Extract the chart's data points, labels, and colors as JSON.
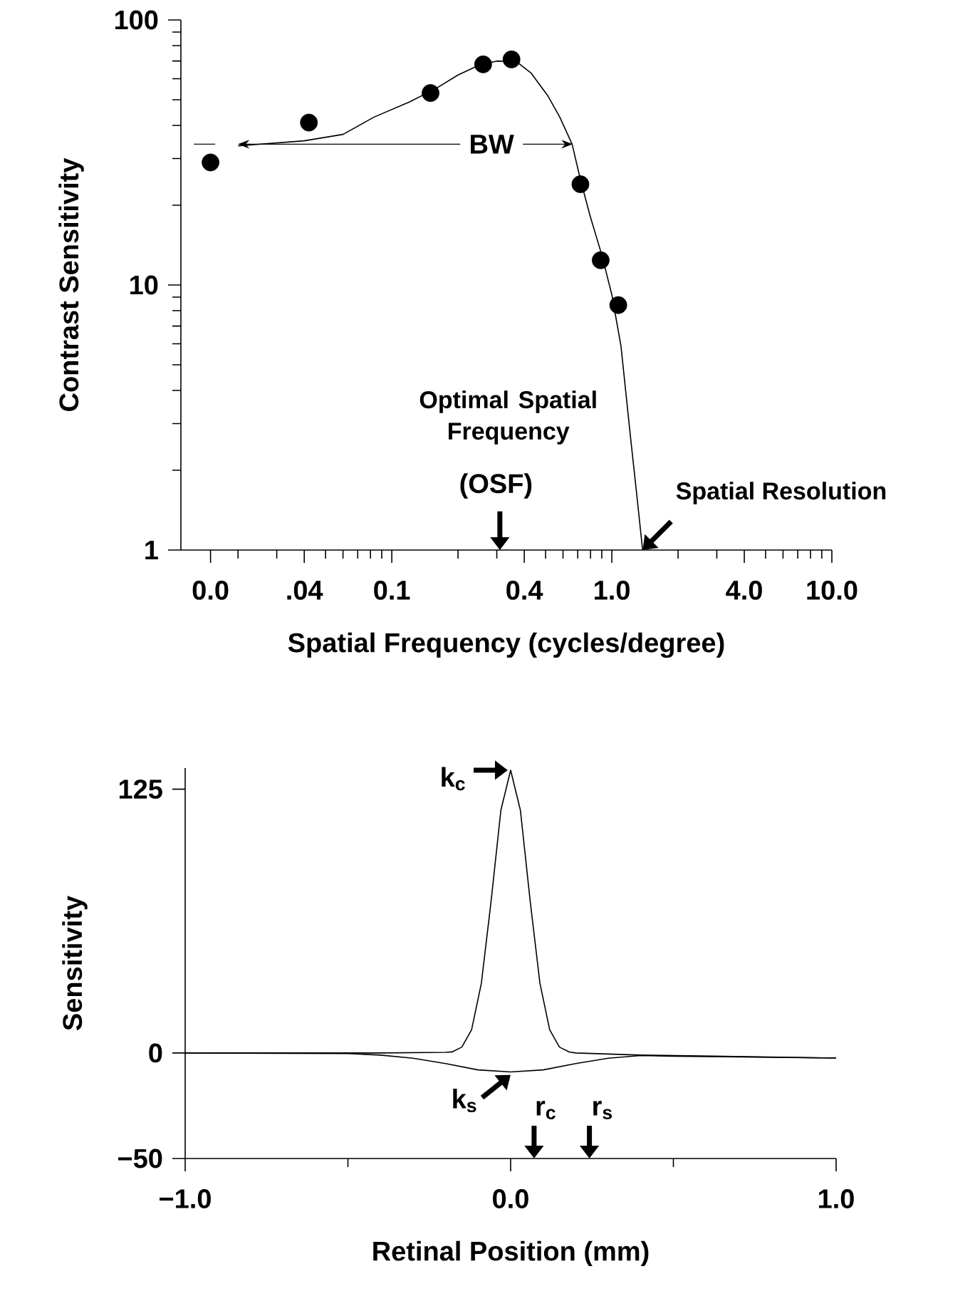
{
  "chart_data": [
    {
      "type": "scatter",
      "xlabel": "Spatial Frequency (cycles/degree)",
      "ylabel": "Contrast Sensitivity",
      "log": "xy",
      "marker": "circle",
      "xlim": [
        0.011,
        10
      ],
      "ylim": [
        1,
        100
      ],
      "xticks": [
        {
          "value": 0.015,
          "label": "0.0"
        },
        {
          "value": 0.02,
          "label": null
        },
        {
          "value": 0.03,
          "label": null
        },
        {
          "value": 0.04,
          "label": ".04"
        },
        {
          "value": 0.05,
          "label": null
        },
        {
          "value": 0.06,
          "label": null
        },
        {
          "value": 0.07,
          "label": null
        },
        {
          "value": 0.08,
          "label": null
        },
        {
          "value": 0.09,
          "label": null
        },
        {
          "value": 0.1,
          "label": "0.1"
        },
        {
          "value": 0.2,
          "label": null
        },
        {
          "value": 0.3,
          "label": null
        },
        {
          "value": 0.4,
          "label": "0.4"
        },
        {
          "value": 0.5,
          "label": null
        },
        {
          "value": 0.6,
          "label": null
        },
        {
          "value": 0.7,
          "label": null
        },
        {
          "value": 0.8,
          "label": null
        },
        {
          "value": 0.9,
          "label": null
        },
        {
          "value": 1,
          "label": "1.0"
        },
        {
          "value": 2,
          "label": null
        },
        {
          "value": 3,
          "label": null
        },
        {
          "value": 4,
          "label": "4.0"
        },
        {
          "value": 5,
          "label": null
        },
        {
          "value": 6,
          "label": null
        },
        {
          "value": 7,
          "label": null
        },
        {
          "value": 8,
          "label": null
        },
        {
          "value": 9,
          "label": null
        },
        {
          "value": 10,
          "label": "10.0"
        }
      ],
      "yticks": [
        1,
        {
          "value": 2,
          "label": null
        },
        {
          "value": 3,
          "label": null
        },
        {
          "value": 4,
          "label": null
        },
        {
          "value": 5,
          "label": null
        },
        {
          "value": 6,
          "label": null
        },
        {
          "value": 7,
          "label": null
        },
        {
          "value": 8,
          "label": null
        },
        {
          "value": 9,
          "label": null
        },
        10,
        {
          "value": 20,
          "label": null
        },
        {
          "value": 30,
          "label": null
        },
        {
          "value": 40,
          "label": null
        },
        {
          "value": 50,
          "label": null
        },
        {
          "value": 60,
          "label": null
        },
        {
          "value": 70,
          "label": null
        },
        {
          "value": 80,
          "label": null
        },
        {
          "value": 90,
          "label": null
        },
        100
      ],
      "series": [
        {
          "type": "scatter",
          "color": "#000000",
          "x": [
            0.015,
            0.042,
            0.15,
            0.26,
            0.35,
            0.72,
            0.89,
            1.07
          ],
          "values": [
            29,
            41,
            53,
            68,
            71,
            24,
            12.4,
            8.4
          ]
        },
        {
          "type": "line",
          "color": "#000000",
          "marker": "none",
          "x": [
            0.02,
            0.04,
            0.06,
            0.083,
            0.12,
            0.158,
            0.2,
            0.25,
            0.3,
            0.37,
            0.43,
            0.51,
            0.58,
            0.66,
            0.72,
            0.8,
            0.9,
            1.0,
            1.1,
            1.22,
            1.3,
            1.38
          ],
          "values": [
            33.5,
            35,
            37,
            43,
            49,
            55,
            62,
            67.6,
            70,
            69.5,
            63,
            52,
            43,
            34,
            25,
            18,
            13,
            9.2,
            5.9,
            2.6,
            1.6,
            1
          ]
        }
      ],
      "annotations": [
        {
          "text": "BW",
          "x": 0.02,
          "y": 34
        },
        "Optimal Spatial Frequency",
        "(OSF)",
        {
          "text": "Spatial Resolution",
          "x": 1.38,
          "y": 1
        }
      ]
    },
    {
      "type": "line",
      "xlabel": "Retinal Position (mm)",
      "ylabel": "Sensitivity",
      "marker": "none",
      "xlim": [
        -1,
        1
      ],
      "ylim": [
        -50,
        135
      ],
      "xticks": [
        {
          "value": -1,
          "label": "−1.0"
        },
        {
          "value": -0.5,
          "label": null
        },
        {
          "value": 0,
          "label": "0.0"
        },
        {
          "value": 0.5,
          "label": null
        },
        {
          "value": 1,
          "label": "1.0"
        }
      ],
      "yticks": [
        {
          "value": -50,
          "label": "−50"
        },
        0,
        125
      ],
      "series": [
        {
          "color": "#000000",
          "x": [
            -1,
            -0.4,
            -0.2,
            -0.18,
            -0.15,
            -0.12,
            -0.09,
            -0.06,
            -0.03,
            0,
            0.03,
            0.06,
            0.09,
            0.12,
            0.15,
            0.18,
            0.2,
            0.4,
            1
          ],
          "values": [
            0,
            0,
            0.3,
            0.5,
            2.8,
            11,
            33,
            72,
            115,
            134,
            115,
            72,
            33,
            11,
            2.8,
            0.5,
            0,
            -1,
            -2.4
          ]
        },
        {
          "color": "#000000",
          "x": [
            -1,
            -0.5,
            -0.4,
            -0.3,
            -0.2,
            -0.1,
            0,
            0.1,
            0.2,
            0.3,
            0.4,
            0.5,
            1
          ],
          "values": [
            0,
            -0.3,
            -1,
            -2.5,
            -5,
            -8,
            -9,
            -8,
            -5,
            -2.5,
            -1.2,
            -1.5,
            -2.4
          ]
        }
      ],
      "annotations": [
        {
          "text": "k$_{c}$",
          "x": 0,
          "y": 134
        },
        {
          "text": "k$_{s}$",
          "x": 0,
          "y": -9
        },
        "r$_{c}$",
        "r$_{s}$"
      ]
    }
  ]
}
